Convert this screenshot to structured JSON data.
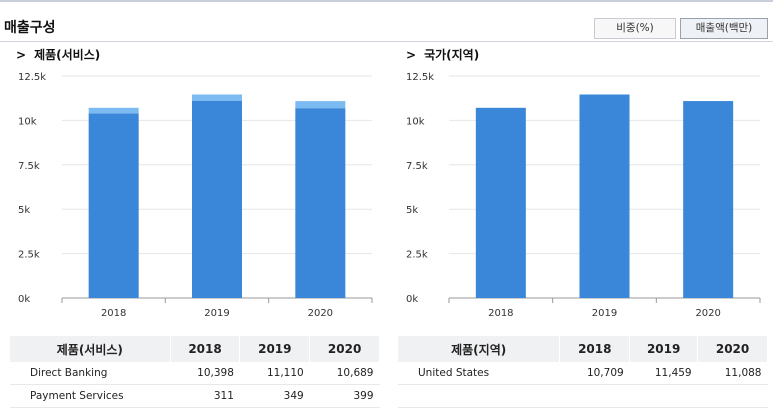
{
  "header": {
    "title": "매출구성",
    "toggle_ratio": "비중(%)",
    "toggle_amount": "매출액(백만)"
  },
  "left": {
    "section_title": "제품(서비스)",
    "table_header": [
      "제품(서비스)",
      "2018",
      "2019",
      "2020"
    ],
    "rows": [
      {
        "name": "Direct Banking",
        "values": [
          "10,398",
          "11,110",
          "10,689"
        ]
      },
      {
        "name": "Payment Services",
        "values": [
          "311",
          "349",
          "399"
        ]
      }
    ]
  },
  "right": {
    "section_title": "국가(지역)",
    "table_header": [
      "제품(지역)",
      "2018",
      "2019",
      "2020"
    ],
    "rows": [
      {
        "name": "United States",
        "values": [
          "10,709",
          "11,459",
          "11,088"
        ]
      }
    ]
  },
  "chart_data": [
    {
      "type": "bar",
      "stacked": true,
      "categories": [
        "2018",
        "2019",
        "2020"
      ],
      "series": [
        {
          "name": "Direct Banking",
          "values": [
            10398,
            11110,
            10689
          ],
          "color": "#3a86d8"
        },
        {
          "name": "Payment Services",
          "values": [
            311,
            349,
            399
          ],
          "color": "#7cbaf2"
        }
      ],
      "ylim": [
        0,
        12500
      ],
      "yticks": [
        "0k",
        "2.5k",
        "5k",
        "7.5k",
        "10k",
        "12.5k"
      ],
      "grid": true
    },
    {
      "type": "bar",
      "categories": [
        "2018",
        "2019",
        "2020"
      ],
      "series": [
        {
          "name": "United States",
          "values": [
            10709,
            11459,
            11088
          ],
          "color": "#3a86d8"
        }
      ],
      "ylim": [
        0,
        12500
      ],
      "yticks": [
        "0k",
        "2.5k",
        "5k",
        "7.5k",
        "10k",
        "12.5k"
      ],
      "grid": true
    }
  ]
}
